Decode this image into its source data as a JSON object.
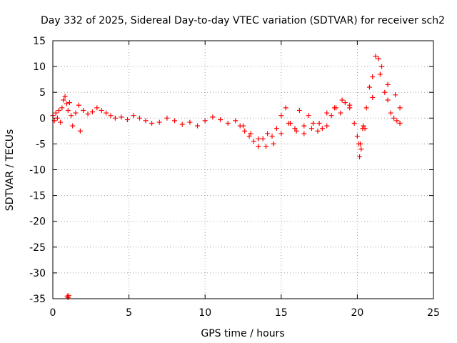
{
  "chart_data": {
    "type": "scatter",
    "title": "Day 332 of 2025, Sidereal Day-to-day VTEC variation (SDTVAR) for receiver sch2",
    "xlabel": "GPS time / hours",
    "ylabel": "SDTVAR / TECUs",
    "xlim": [
      0,
      25
    ],
    "ylim": [
      -35,
      15
    ],
    "xticks": [
      0,
      5,
      10,
      15,
      20,
      25
    ],
    "yticks": [
      15,
      10,
      5,
      0,
      -5,
      -10,
      -15,
      -20,
      -25,
      -30,
      -35
    ],
    "grid": true,
    "marker": "+",
    "color": "#ff0000",
    "series": [
      {
        "name": "SDTVAR",
        "x": [
          0.0,
          0.1,
          0.2,
          0.3,
          0.4,
          0.5,
          0.6,
          0.7,
          0.8,
          0.9,
          1.0,
          1.1,
          1.2,
          1.3,
          1.5,
          1.7,
          1.8,
          2.0,
          2.3,
          2.6,
          2.9,
          3.2,
          3.5,
          3.8,
          4.1,
          4.5,
          4.9,
          5.3,
          5.7,
          6.1,
          6.5,
          7.0,
          7.5,
          8.0,
          8.5,
          9.0,
          9.5,
          10.0,
          10.5,
          11.0,
          11.5,
          12.0,
          12.3,
          12.6,
          12.9,
          13.2,
          13.5,
          13.8,
          14.1,
          14.4,
          14.7,
          15.0,
          15.3,
          15.6,
          15.9,
          16.2,
          16.5,
          16.8,
          17.1,
          17.4,
          17.7,
          18.0,
          18.3,
          18.6,
          18.9,
          19.2,
          19.5,
          19.8,
          20.0,
          20.2,
          20.4,
          20.6,
          20.8,
          21.0,
          21.2,
          21.4,
          21.6,
          21.8,
          22.0,
          22.2,
          22.4,
          22.6,
          22.8,
          0.95,
          1.0,
          1.05,
          20.1,
          20.15,
          20.25,
          20.35,
          12.5,
          13.0,
          13.5,
          14.0,
          14.5,
          15.0,
          15.5,
          16.0,
          16.5,
          17.0,
          17.5,
          18.0,
          18.5,
          19.0,
          19.5,
          20.5,
          21.0,
          21.5,
          22.0,
          22.5,
          22.8
        ],
        "y": [
          0.5,
          -0.5,
          1.0,
          0.0,
          1.5,
          -0.8,
          2.0,
          3.5,
          4.2,
          2.8,
          1.5,
          3.0,
          0.5,
          -1.5,
          1.0,
          2.5,
          -2.5,
          1.5,
          0.8,
          1.2,
          2.0,
          1.5,
          1.0,
          0.5,
          0.0,
          0.2,
          -0.3,
          0.5,
          0.0,
          -0.5,
          -1.0,
          -0.8,
          0.0,
          -0.5,
          -1.2,
          -0.8,
          -1.5,
          -0.5,
          0.2,
          -0.3,
          -1.0,
          -0.5,
          -1.5,
          -2.5,
          -3.5,
          -4.5,
          -5.5,
          -4.0,
          -3.0,
          -3.5,
          -2.0,
          0.5,
          2.0,
          -1.0,
          -2.0,
          1.5,
          -1.5,
          0.5,
          -1.0,
          -2.5,
          -2.0,
          -1.5,
          0.5,
          2.0,
          1.0,
          3.0,
          2.5,
          -1.0,
          -3.5,
          -5.0,
          -1.5,
          2.0,
          6.0,
          8.0,
          12.0,
          11.5,
          10.0,
          5.0,
          3.5,
          1.0,
          0.0,
          -0.5,
          -1.0,
          -34.5,
          -34.8,
          -34.4,
          -5.0,
          -7.5,
          -6.0,
          -2.0,
          -1.5,
          -3.0,
          -4.0,
          -5.5,
          -5.0,
          -3.0,
          -1.0,
          -2.5,
          -3.0,
          -2.0,
          -1.0,
          1.0,
          2.0,
          3.5,
          2.0,
          -2.0,
          4.0,
          8.5,
          6.5,
          4.5,
          2.0
        ]
      }
    ]
  }
}
